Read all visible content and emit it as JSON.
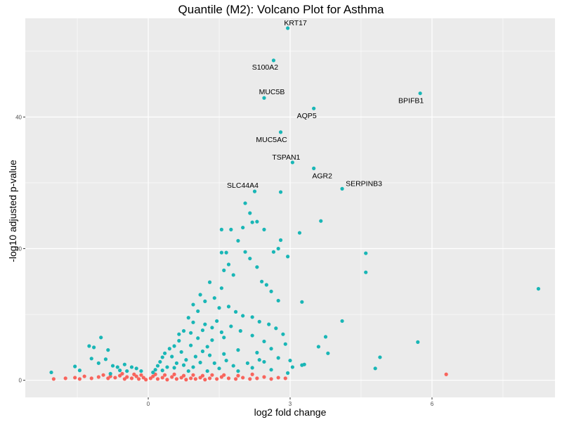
{
  "chart_data": {
    "type": "scatter",
    "title": "Quantile (M2): Volcano Plot for Asthma",
    "xlabel": "log2 fold change",
    "ylabel": "-log10 adjusted p-value",
    "x_ticks": [
      "0",
      "3",
      "6"
    ],
    "y_ticks": [
      "0",
      "20",
      "40"
    ],
    "xlim": [
      -2.6,
      8.6
    ],
    "ylim": [
      -2.6,
      55.0
    ],
    "grid": true,
    "legend": "none",
    "colors": {
      "significant": "#19b6b6",
      "not_significant": "#f8645c",
      "panel": "#ebebeb",
      "grid": "#ffffff"
    },
    "labeled_points": [
      {
        "label": "KRT17",
        "x": 2.95,
        "y": 53.5
      },
      {
        "label": "S100A2",
        "x": 2.65,
        "y": 48.6
      },
      {
        "label": "MUC5B",
        "x": 2.45,
        "y": 42.9
      },
      {
        "label": "AQP5",
        "x": 3.5,
        "y": 41.3
      },
      {
        "label": "BPIFB1",
        "x": 5.75,
        "y": 43.6
      },
      {
        "label": "MUC5AC",
        "x": 2.8,
        "y": 37.7
      },
      {
        "label": "TSPAN1",
        "x": 3.05,
        "y": 33.1
      },
      {
        "label": "AGR2",
        "x": 3.5,
        "y": 32.2
      },
      {
        "label": "SERPINB3",
        "x": 4.1,
        "y": 29.1
      },
      {
        "label": "SLC44A4",
        "x": 2.25,
        "y": 28.7
      }
    ],
    "significant_points": [
      [
        2.8,
        28.6
      ],
      [
        2.05,
        26.9
      ],
      [
        2.15,
        25.4
      ],
      [
        2.3,
        24.1
      ],
      [
        2.2,
        24.0
      ],
      [
        2.0,
        23.2
      ],
      [
        1.75,
        22.9
      ],
      [
        1.55,
        22.9
      ],
      [
        2.45,
        22.9
      ],
      [
        3.2,
        22.4
      ],
      [
        3.65,
        24.2
      ],
      [
        1.9,
        21.2
      ],
      [
        2.8,
        21.3
      ],
      [
        1.65,
        19.4
      ],
      [
        1.55,
        19.4
      ],
      [
        2.05,
        19.5
      ],
      [
        2.65,
        19.5
      ],
      [
        2.75,
        20.0
      ],
      [
        2.95,
        18.8
      ],
      [
        2.15,
        18.5
      ],
      [
        4.6,
        19.3
      ],
      [
        1.6,
        16.7
      ],
      [
        2.3,
        17.2
      ],
      [
        1.7,
        17.6
      ],
      [
        4.6,
        16.4
      ],
      [
        1.8,
        16.0
      ],
      [
        1.55,
        14.0
      ],
      [
        2.4,
        15.0
      ],
      [
        2.5,
        14.5
      ],
      [
        1.3,
        14.9
      ],
      [
        2.6,
        13.5
      ],
      [
        2.75,
        12.1
      ],
      [
        3.25,
        11.9
      ],
      [
        8.25,
        13.9
      ],
      [
        4.1,
        9.0
      ],
      [
        3.75,
        6.6
      ],
      [
        3.6,
        5.1
      ],
      [
        3.8,
        4.1
      ],
      [
        5.7,
        5.8
      ],
      [
        4.9,
        3.5
      ],
      [
        4.8,
        1.8
      ],
      [
        3.3,
        2.4
      ],
      [
        3.25,
        2.3
      ],
      [
        2.95,
        1.1
      ],
      [
        -2.05,
        1.2
      ],
      [
        -1.55,
        2.1
      ],
      [
        -1.45,
        1.5
      ],
      [
        -1.25,
        5.2
      ],
      [
        -1.15,
        5.0
      ],
      [
        -1.2,
        3.3
      ],
      [
        -1.05,
        2.6
      ],
      [
        -1.0,
        6.5
      ],
      [
        -0.9,
        3.2
      ],
      [
        -0.85,
        4.6
      ],
      [
        -0.8,
        1.0
      ],
      [
        -0.75,
        2.2
      ],
      [
        -0.65,
        2.0
      ],
      [
        -0.6,
        1.5
      ],
      [
        -0.5,
        2.4
      ],
      [
        -0.45,
        1.4
      ],
      [
        -0.35,
        2.0
      ],
      [
        -0.25,
        1.8
      ],
      [
        -0.15,
        1.4
      ],
      [
        1.2,
        12.0
      ],
      [
        1.1,
        13.0
      ],
      [
        0.95,
        11.5
      ],
      [
        1.05,
        10.5
      ],
      [
        1.4,
        12.5
      ],
      [
        1.5,
        11.0
      ],
      [
        1.7,
        11.2
      ],
      [
        1.85,
        10.4
      ],
      [
        2.0,
        9.8
      ],
      [
        2.2,
        9.6
      ],
      [
        2.35,
        8.9
      ],
      [
        2.55,
        8.5
      ],
      [
        2.7,
        7.9
      ],
      [
        2.85,
        7.0
      ],
      [
        2.2,
        6.8
      ],
      [
        1.95,
        7.5
      ],
      [
        1.75,
        8.2
      ],
      [
        1.45,
        9.0
      ],
      [
        1.2,
        8.5
      ],
      [
        0.95,
        8.8
      ],
      [
        0.85,
        9.5
      ],
      [
        0.75,
        7.5
      ],
      [
        1.6,
        6.5
      ],
      [
        2.45,
        5.9
      ],
      [
        2.9,
        5.5
      ],
      [
        2.6,
        4.8
      ],
      [
        2.3,
        4.2
      ],
      [
        1.9,
        4.6
      ],
      [
        1.6,
        4.0
      ],
      [
        1.3,
        3.8
      ],
      [
        2.75,
        3.4
      ],
      [
        2.45,
        2.8
      ],
      [
        2.1,
        2.6
      ],
      [
        1.8,
        2.2
      ],
      [
        2.6,
        1.6
      ],
      [
        3.0,
        3.0
      ],
      [
        3.05,
        2.0
      ],
      [
        2.35,
        3.1
      ],
      [
        1.55,
        7.3
      ],
      [
        1.35,
        6.1
      ],
      [
        1.05,
        6.4
      ],
      [
        0.65,
        6.0
      ],
      [
        0.55,
        5.2
      ],
      [
        0.45,
        4.8
      ],
      [
        0.35,
        4.1
      ],
      [
        0.3,
        3.5
      ],
      [
        0.25,
        2.8
      ],
      [
        0.2,
        2.2
      ],
      [
        0.15,
        1.6
      ],
      [
        0.4,
        2.0
      ],
      [
        0.6,
        2.6
      ],
      [
        0.8,
        3.1
      ],
      [
        1.0,
        3.6
      ],
      [
        1.15,
        4.4
      ],
      [
        1.25,
        5.1
      ],
      [
        0.9,
        5.3
      ],
      [
        0.7,
        4.3
      ],
      [
        0.5,
        3.6
      ],
      [
        0.3,
        1.5
      ],
      [
        0.1,
        1.2
      ],
      [
        0.55,
        1.9
      ],
      [
        0.75,
        2.3
      ],
      [
        0.95,
        2.0
      ],
      [
        1.1,
        2.7
      ],
      [
        1.4,
        2.6
      ],
      [
        1.65,
        3.0
      ],
      [
        1.5,
        1.8
      ],
      [
        1.25,
        1.4
      ],
      [
        0.85,
        1.4
      ],
      [
        1.9,
        1.4
      ],
      [
        2.2,
        1.9
      ],
      [
        0.65,
        7.0
      ],
      [
        0.9,
        7.2
      ],
      [
        1.15,
        7.6
      ],
      [
        1.35,
        8.0
      ]
    ],
    "nonsignificant_points": [
      [
        -2.0,
        0.2
      ],
      [
        -1.75,
        0.3
      ],
      [
        -1.55,
        0.4
      ],
      [
        -1.45,
        0.2
      ],
      [
        -1.35,
        0.6
      ],
      [
        -1.2,
        0.3
      ],
      [
        -1.05,
        0.5
      ],
      [
        -0.95,
        0.8
      ],
      [
        -0.85,
        0.3
      ],
      [
        -0.8,
        0.6
      ],
      [
        -0.7,
        0.4
      ],
      [
        -0.6,
        0.7
      ],
      [
        -0.5,
        0.2
      ],
      [
        -0.45,
        0.5
      ],
      [
        -0.35,
        0.3
      ],
      [
        -0.25,
        0.6
      ],
      [
        -0.2,
        0.2
      ],
      [
        -0.1,
        0.4
      ],
      [
        -0.05,
        0.1
      ],
      [
        0.05,
        0.3
      ],
      [
        0.1,
        0.6
      ],
      [
        0.2,
        0.2
      ],
      [
        0.3,
        0.4
      ],
      [
        0.4,
        0.1
      ],
      [
        0.5,
        0.5
      ],
      [
        0.6,
        0.2
      ],
      [
        0.7,
        0.4
      ],
      [
        0.8,
        0.1
      ],
      [
        0.9,
        0.3
      ],
      [
        1.0,
        0.2
      ],
      [
        1.1,
        0.4
      ],
      [
        1.2,
        0.1
      ],
      [
        1.3,
        0.3
      ],
      [
        1.45,
        0.2
      ],
      [
        1.55,
        0.5
      ],
      [
        1.7,
        0.3
      ],
      [
        1.85,
        0.2
      ],
      [
        2.0,
        0.4
      ],
      [
        2.15,
        0.2
      ],
      [
        2.3,
        0.3
      ],
      [
        2.45,
        0.5
      ],
      [
        2.6,
        0.2
      ],
      [
        2.75,
        0.4
      ],
      [
        2.9,
        0.3
      ],
      [
        0.15,
        0.9
      ],
      [
        0.35,
        0.8
      ],
      [
        0.55,
        0.9
      ],
      [
        0.75,
        0.7
      ],
      [
        0.95,
        0.8
      ],
      [
        1.15,
        0.7
      ],
      [
        1.35,
        0.8
      ],
      [
        -0.3,
        0.9
      ],
      [
        -0.55,
        1.0
      ],
      [
        -0.15,
        0.8
      ],
      [
        1.6,
        0.8
      ],
      [
        1.9,
        0.7
      ],
      [
        2.2,
        0.9
      ],
      [
        6.3,
        0.9
      ]
    ]
  }
}
